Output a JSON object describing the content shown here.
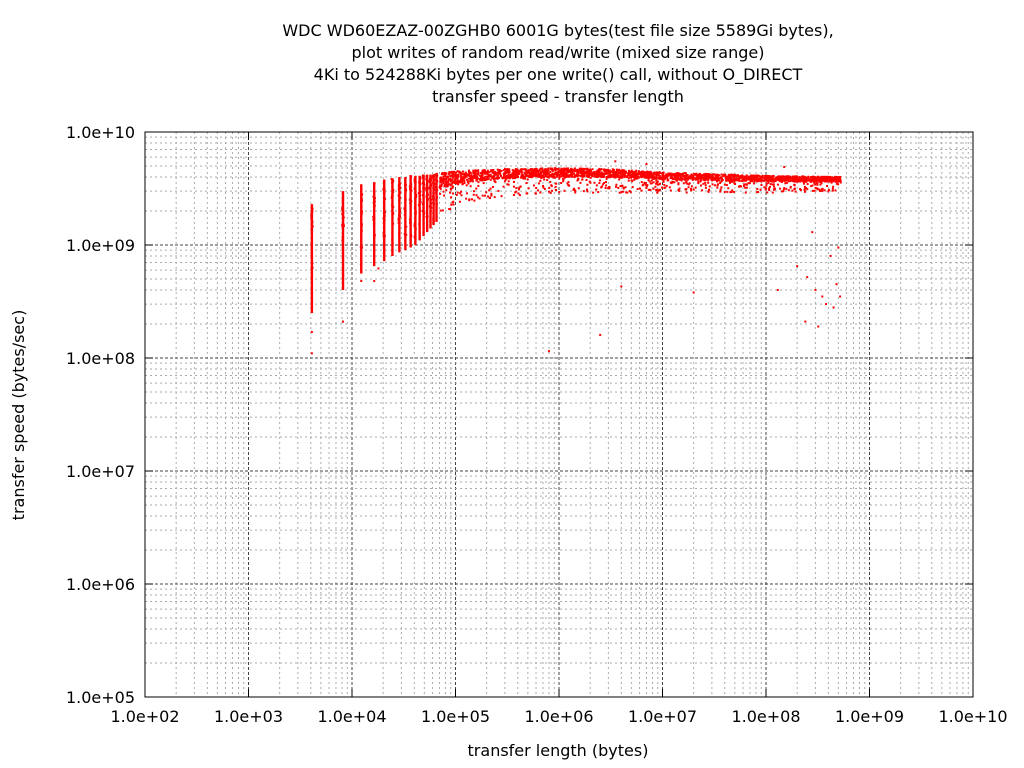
{
  "chart_data": {
    "type": "scatter",
    "title": [
      "WDC WD60EZAZ-00ZGHB0 6001G bytes(test file size 5589Gi bytes),",
      "plot writes of random read/write (mixed size range)",
      "4Ki to 524288Ki bytes per one write() call, without O_DIRECT",
      "transfer speed - transfer length"
    ],
    "xlabel": "transfer length (bytes)",
    "ylabel": "transfer speed (bytes/sec)",
    "x_scale": "log",
    "y_scale": "log",
    "xlim": [
      100,
      10000000000
    ],
    "ylim": [
      100000,
      10000000000
    ],
    "x_tick_labels": [
      "1.0e+02",
      "1.0e+03",
      "1.0e+04",
      "1.0e+05",
      "1.0e+06",
      "1.0e+07",
      "1.0e+08",
      "1.0e+09",
      "1.0e+10"
    ],
    "y_tick_labels": [
      "1.0e+05",
      "1.0e+06",
      "1.0e+07",
      "1.0e+08",
      "1.0e+09",
      "1.0e+10"
    ],
    "grid": true,
    "legend": "none",
    "series": [
      {
        "color": "#ff0000",
        "columns": [
          {
            "x": 4096,
            "y_min": 250000000,
            "y_max": 2300000000
          },
          {
            "x": 8192,
            "y_min": 400000000,
            "y_max": 3000000000
          },
          {
            "x": 12288,
            "y_min": 560000000,
            "y_max": 3400000000
          },
          {
            "x": 16384,
            "y_min": 650000000,
            "y_max": 3600000000
          },
          {
            "x": 20480,
            "y_min": 720000000,
            "y_max": 3800000000
          },
          {
            "x": 24576,
            "y_min": 800000000,
            "y_max": 3900000000
          },
          {
            "x": 28672,
            "y_min": 860000000,
            "y_max": 4000000000
          },
          {
            "x": 32768,
            "y_min": 900000000,
            "y_max": 4000000000
          },
          {
            "x": 36864,
            "y_min": 950000000,
            "y_max": 4100000000
          },
          {
            "x": 40960,
            "y_min": 1000000000,
            "y_max": 4100000000
          },
          {
            "x": 45056,
            "y_min": 1100000000,
            "y_max": 4100000000
          },
          {
            "x": 49152,
            "y_min": 1200000000,
            "y_max": 4200000000
          },
          {
            "x": 53248,
            "y_min": 1300000000,
            "y_max": 4200000000
          },
          {
            "x": 57344,
            "y_min": 1400000000,
            "y_max": 4200000000
          },
          {
            "x": 61440,
            "y_min": 1500000000,
            "y_max": 4200000000
          },
          {
            "x": 65536,
            "y_min": 1600000000,
            "y_max": 4300000000
          }
        ],
        "band": [
          {
            "x": 70000,
            "y_min": 1700000000,
            "y_max": 4300000000
          },
          {
            "x": 100000,
            "y_min": 2200000000,
            "y_max": 4500000000
          },
          {
            "x": 300000,
            "y_min": 2700000000,
            "y_max": 4700000000
          },
          {
            "x": 1000000,
            "y_min": 2900000000,
            "y_max": 4800000000
          },
          {
            "x": 3000000,
            "y_min": 2900000000,
            "y_max": 4700000000
          },
          {
            "x": 10000000,
            "y_min": 2900000000,
            "y_max": 4400000000
          },
          {
            "x": 100000000,
            "y_min": 2900000000,
            "y_max": 4100000000
          },
          {
            "x": 540000000,
            "y_min": 3000000000,
            "y_max": 4000000000
          }
        ],
        "outliers": [
          [
            4096,
            110000000
          ],
          [
            4096,
            170000000
          ],
          [
            8192,
            210000000
          ],
          [
            12288,
            480000000
          ],
          [
            16384,
            480000000
          ],
          [
            18000,
            620000000
          ],
          [
            800000,
            115000000
          ],
          [
            2500000,
            160000000
          ],
          [
            4000000,
            430000000
          ],
          [
            20000000,
            380000000
          ],
          [
            130000000,
            400000000
          ],
          [
            200000000,
            650000000
          ],
          [
            250000000,
            520000000
          ],
          [
            300000000,
            400000000
          ],
          [
            320000000,
            190000000
          ],
          [
            350000000,
            350000000
          ],
          [
            380000000,
            300000000
          ],
          [
            420000000,
            800000000
          ],
          [
            450000000,
            280000000
          ],
          [
            480000000,
            450000000
          ],
          [
            500000000,
            950000000
          ],
          [
            520000000,
            350000000
          ],
          [
            240000000,
            210000000
          ],
          [
            280000000,
            1300000000
          ],
          [
            150000000,
            4900000000
          ],
          [
            3500000,
            5500000000
          ],
          [
            7000000,
            5200000000
          ]
        ]
      }
    ]
  }
}
